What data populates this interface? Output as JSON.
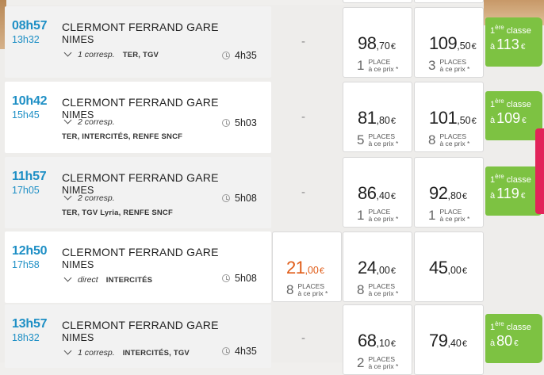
{
  "rows": [
    {
      "dep": "08h57",
      "arr": "13h32",
      "from": "CLERMONT FERRAND GARE",
      "to": "NIMES",
      "corresp": "1 corresp.",
      "trains": "TER, TGV",
      "trains2": "",
      "duration": "4h35",
      "second_class": "-",
      "prem": {
        "int": "98",
        "dec": ",70",
        "cur": "€",
        "places": "1",
        "places_label": "PLACE"
      },
      "prem_plus": {
        "int": "109",
        "dec": ",50",
        "cur": "€",
        "places": "3",
        "places_label": "PLACES"
      },
      "first": {
        "value": "113",
        "cur": "€"
      }
    },
    {
      "dep": "10h42",
      "arr": "15h45",
      "from": "CLERMONT FERRAND GARE",
      "to": "NIMES",
      "corresp": "2 corresp.",
      "trains": "",
      "trains2": "TER, INTERCITÉS, RENFE SNCF",
      "duration": "5h03",
      "second_class": "-",
      "prem": {
        "int": "81",
        "dec": ",80",
        "cur": "€",
        "places": "5",
        "places_label": "PLACES"
      },
      "prem_plus": {
        "int": "101",
        "dec": ",50",
        "cur": "€",
        "places": "8",
        "places_label": "PLACES"
      },
      "first": {
        "value": "109",
        "cur": "€"
      }
    },
    {
      "dep": "11h57",
      "arr": "17h05",
      "from": "CLERMONT FERRAND GARE",
      "to": "NIMES",
      "corresp": "2 corresp.",
      "trains": "",
      "trains2": "TER, TGV Lyria, RENFE SNCF",
      "duration": "5h08",
      "second_class": "-",
      "prem": {
        "int": "86",
        "dec": ",40",
        "cur": "€",
        "places": "1",
        "places_label": "PLACE"
      },
      "prem_plus": {
        "int": "92",
        "dec": ",80",
        "cur": "€",
        "places": "1",
        "places_label": "PLACE"
      },
      "first": {
        "value": "119",
        "cur": "€"
      }
    },
    {
      "dep": "12h50",
      "arr": "17h58",
      "from": "CLERMONT FERRAND GARE",
      "to": "NIMES",
      "corresp": "direct",
      "trains": "INTERCITÉS",
      "trains2": "",
      "duration": "5h08",
      "second": {
        "int": "21",
        "dec": ",00",
        "cur": "€",
        "places": "8",
        "places_label": "PLACES"
      },
      "prem": {
        "int": "24",
        "dec": ",00",
        "cur": "€",
        "places": "8",
        "places_label": "PLACES"
      },
      "prem_plus": {
        "int": "45",
        "dec": ",00",
        "cur": "€",
        "places": "",
        "places_label": ""
      }
    },
    {
      "dep": "13h57",
      "arr": "18h32",
      "from": "CLERMONT FERRAND GARE",
      "to": "NIMES",
      "corresp": "1 corresp.",
      "trains": "INTERCITÉS, TGV",
      "trains2": "",
      "duration": "4h35",
      "second_class": "-",
      "prem": {
        "int": "68",
        "dec": ",10",
        "cur": "€",
        "places": "2",
        "places_label": "PLACES"
      },
      "prem_plus": {
        "int": "79",
        "dec": ",40",
        "cur": "€",
        "places": "",
        "places_label": ""
      },
      "first": {
        "value": "80",
        "cur": "€"
      }
    }
  ],
  "labels": {
    "price_note": "à ce prix *",
    "first_prefix": "1",
    "first_sup": "ère",
    "first_word": "classe",
    "first_a": "à"
  },
  "colors": {
    "time": "#1e8fc5",
    "first_badge": "#7dc242",
    "orange_price": "#e05b16",
    "side_tab": "#e2245a"
  }
}
